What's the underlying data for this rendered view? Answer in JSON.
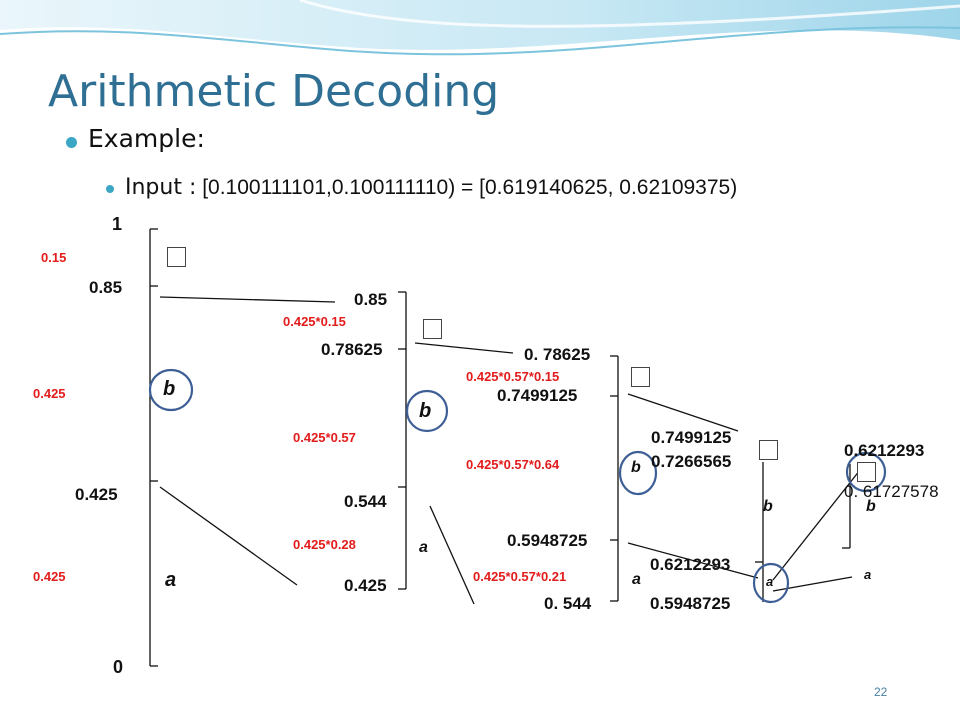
{
  "slide": {
    "title": "Arithmetic Decoding",
    "bullet_1": "Example:",
    "bullet_2_lead": "Input :",
    "bullet_2_rest": " [0.100111101,0.100111110) = [0.619140625, 0.62109375)",
    "page_number": "22"
  },
  "scale_1": {
    "top": "1",
    "upper": "0.85",
    "mid": "0.425",
    "bottom": "0",
    "width_top": "0.15",
    "width_b": "0.425",
    "width_a": "0.425",
    "sym_b": "b",
    "sym_a": "a"
  },
  "scale_2": {
    "top": "0.85",
    "upper": "0.78625",
    "mid": "0.544",
    "bottom": "0.425",
    "width_top": "0.425*0.15",
    "width_b": "0.425*0.57",
    "width_a": "0.425*0.28",
    "sym_b": "b",
    "sym_a": "a"
  },
  "scale_3": {
    "top": "0. 78625",
    "upper": "0.7499125",
    "mid": "0.5948725",
    "bottom": "0. 544",
    "width_top": "0.425*0.57*0.15",
    "width_b": "0.425*0.57*0.64",
    "width_a": "0.425*0.57*0.21",
    "sym_b": "b",
    "sym_a": "a"
  },
  "scale_4": {
    "top": "0.7499125",
    "upper": "0.7266565",
    "mid": "0.6212293",
    "bottom": "0.5948725",
    "sym_b": "b",
    "sym_a": "a"
  },
  "scale_5": {
    "top": "0.6212293",
    "mid": "0. 61727578",
    "sym_b": "b",
    "sym_a": "a"
  }
}
